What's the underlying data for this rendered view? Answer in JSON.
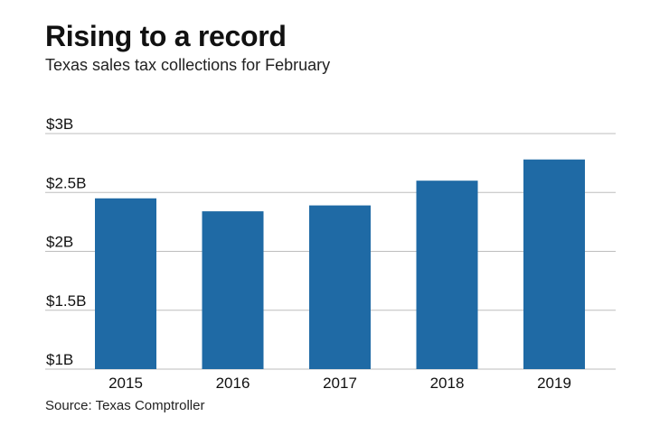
{
  "title": "Rising to a record",
  "subtitle": "Texas sales tax collections for February",
  "source": "Source: Texas Comptroller",
  "chart_data": {
    "type": "bar",
    "title": "Rising to a record",
    "subtitle": "Texas sales tax collections for February",
    "xlabel": "",
    "ylabel": "",
    "categories": [
      "2015",
      "2016",
      "2017",
      "2018",
      "2019"
    ],
    "values": [
      2.45,
      2.34,
      2.39,
      2.6,
      2.78
    ],
    "value_unit": "billion USD",
    "ylim": [
      1,
      3
    ],
    "yticks": [
      1,
      1.5,
      2,
      2.5,
      3
    ],
    "ytick_labels": [
      "$1B",
      "$1.5B",
      "$2B",
      "$2.5B",
      "$3B"
    ],
    "grid": true,
    "legend": "none",
    "bar_color": "#1f6aa5",
    "grid_color": "#bdbdbd"
  }
}
